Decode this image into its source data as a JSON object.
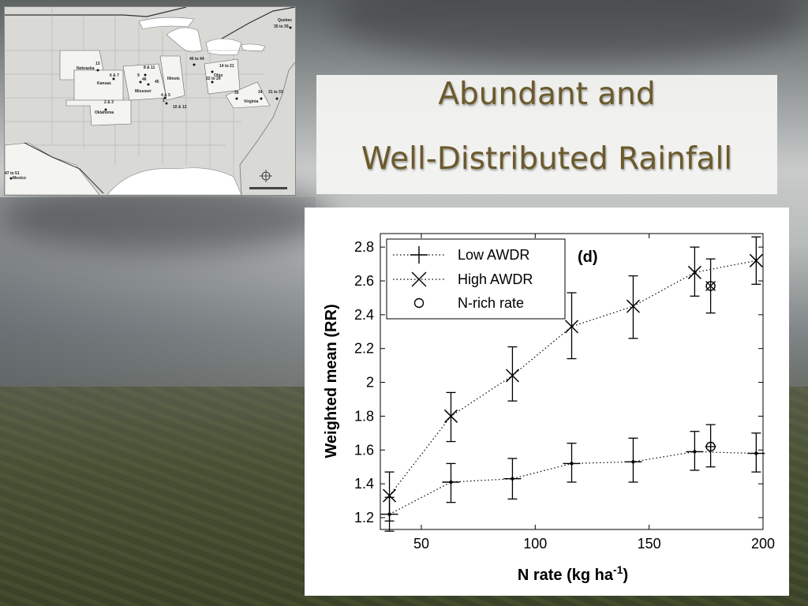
{
  "slide": {
    "title_line1": "Abundant and",
    "title_line2": "Well-Distributed Rainfall"
  },
  "map": {
    "labels": [
      {
        "id": "nebraska",
        "text": "Nebraska"
      },
      {
        "id": "kansas",
        "text": "Kansas"
      },
      {
        "id": "oklahoma",
        "text": "Oklahoma"
      },
      {
        "id": "missouri",
        "text": "Missouri"
      },
      {
        "id": "illinois",
        "text": "Illinois"
      },
      {
        "id": "ohio",
        "text": "Ohio"
      },
      {
        "id": "virginia",
        "text": "Virginia"
      },
      {
        "id": "quebec",
        "text": "Quebec"
      },
      {
        "id": "mexico",
        "text": "Mexico"
      },
      {
        "id": "s13",
        "text": "13"
      },
      {
        "id": "s6-7",
        "text": "6 & 7"
      },
      {
        "id": "s2-3",
        "text": "2 & 3"
      },
      {
        "id": "s8-11",
        "text": "8 & 11"
      },
      {
        "id": "s9",
        "text": "9"
      },
      {
        "id": "s46",
        "text": "46"
      },
      {
        "id": "s45",
        "text": "45"
      },
      {
        "id": "s4-5",
        "text": "4 & 5"
      },
      {
        "id": "s1",
        "text": "1"
      },
      {
        "id": "s10-12",
        "text": "10 & 12"
      },
      {
        "id": "s40-44",
        "text": "40 to 44"
      },
      {
        "id": "s14-21",
        "text": "14 to 21"
      },
      {
        "id": "s22-29",
        "text": "22 to 29"
      },
      {
        "id": "s30",
        "text": "30"
      },
      {
        "id": "s34",
        "text": "34"
      },
      {
        "id": "s31-33",
        "text": "31 to 33"
      },
      {
        "id": "s35-39",
        "text": "35 to 39"
      },
      {
        "id": "s47-51",
        "text": "47 to 51"
      }
    ]
  },
  "chart_data": {
    "type": "line",
    "panel_label": "(d)",
    "xlabel": "N rate (kg ha",
    "xlabel_sup": "-1",
    "xlabel_end": ")",
    "ylabel": "Weighted mean (RR)",
    "xlim": [
      32,
      200
    ],
    "ylim": [
      1.13,
      2.88
    ],
    "xticks": [
      50,
      100,
      150,
      200
    ],
    "yticks": [
      1.2,
      1.4,
      1.6,
      1.8,
      2,
      2.2,
      2.4,
      2.6,
      2.8
    ],
    "ytick_labels": [
      "1.2",
      "1.4",
      "1.6",
      "1.8",
      "2",
      "2.2",
      "2.4",
      "2.6",
      "2.8"
    ],
    "xtick_labels": [
      "50",
      "100",
      "150",
      "200"
    ],
    "grid": false,
    "legend_position": "top-left",
    "series": [
      {
        "name": "Low AWDR",
        "marker": "plus",
        "x": [
          36,
          63,
          90,
          116,
          143,
          170,
          197
        ],
        "y": [
          1.22,
          1.41,
          1.43,
          1.52,
          1.53,
          1.59,
          1.58
        ],
        "err_low": [
          1.12,
          1.29,
          1.31,
          1.41,
          1.41,
          1.48,
          1.47
        ],
        "err_high": [
          1.32,
          1.52,
          1.55,
          1.64,
          1.67,
          1.71,
          1.7
        ]
      },
      {
        "name": "High AWDR",
        "marker": "x",
        "x": [
          36,
          63,
          90,
          116,
          143,
          170,
          197
        ],
        "y": [
          1.33,
          1.8,
          2.04,
          2.33,
          2.45,
          2.65,
          2.72
        ],
        "err_low": [
          1.18,
          1.65,
          1.89,
          2.14,
          2.26,
          2.51,
          2.58
        ],
        "err_high": [
          1.47,
          1.94,
          2.21,
          2.53,
          2.63,
          2.8,
          2.86
        ]
      },
      {
        "name": "N-rich rate",
        "marker": "circle",
        "points": [
          {
            "x": 177,
            "y": 2.57,
            "err_low": 2.41,
            "err_high": 2.73,
            "group": "High AWDR"
          },
          {
            "x": 177,
            "y": 1.62,
            "err_low": 1.5,
            "err_high": 1.75,
            "group": "Low AWDR"
          }
        ]
      }
    ]
  },
  "colors": {
    "title": "#6b5a2c",
    "chart_ink": "#000000"
  }
}
